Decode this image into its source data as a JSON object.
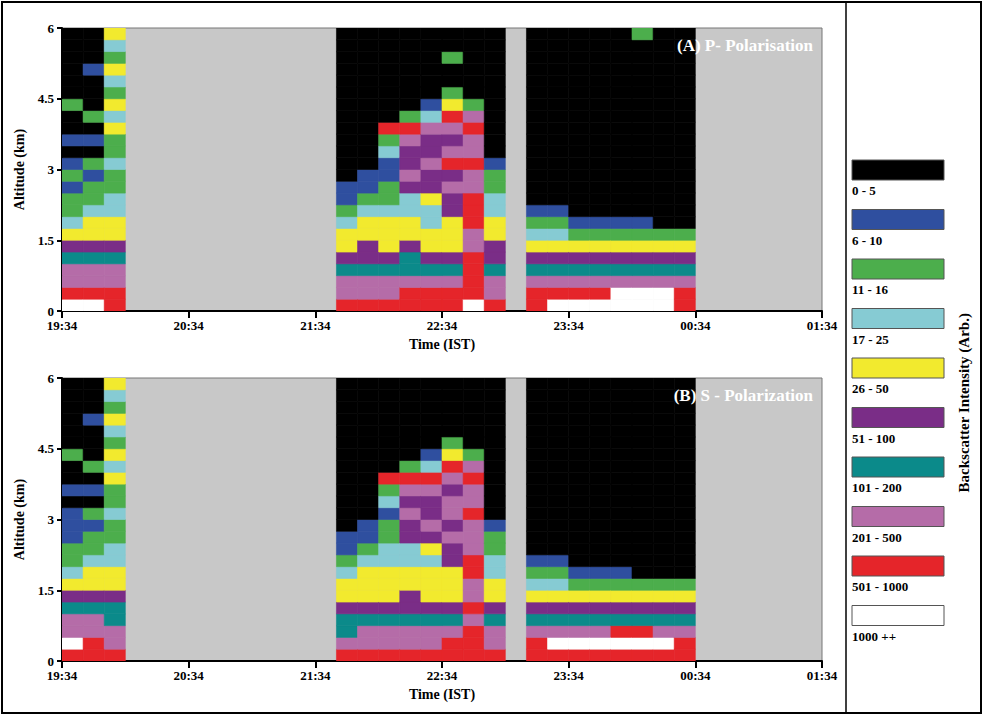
{
  "chart_data": [
    {
      "type": "heatmap",
      "title": "(A) P- Polarisation",
      "xlabel": "Time (IST)",
      "ylabel": "Altitude (km)",
      "xlim": [
        1174,
        1534
      ],
      "xticks": [
        {
          "value": 1174,
          "label": "19:34"
        },
        {
          "value": 1234,
          "label": "20:34"
        },
        {
          "value": 1294,
          "label": "21:34"
        },
        {
          "value": 1354,
          "label": "22:34"
        },
        {
          "value": 1414,
          "label": "23:34"
        },
        {
          "value": 1474,
          "label": "00:34"
        },
        {
          "value": 1534,
          "label": "01:34"
        }
      ],
      "ylim": [
        0,
        6
      ],
      "yticks": [
        0,
        1.5,
        3,
        4.5,
        6
      ],
      "grid": false,
      "time_edges": [
        1174,
        1184,
        1194,
        1204,
        1214,
        1224,
        1234,
        1244,
        1254,
        1264,
        1274,
        1284,
        1294,
        1304,
        1314,
        1324,
        1334,
        1344,
        1354,
        1364,
        1374,
        1384,
        1394,
        1404,
        1414,
        1424,
        1434,
        1444,
        1454,
        1464,
        1474
      ],
      "altitude_edges": [
        0,
        0.25,
        0.5,
        0.75,
        1,
        1.25,
        1.5,
        1.75,
        2,
        2.25,
        2.5,
        2.75,
        3,
        3.25,
        3.5,
        3.75,
        4,
        4.25,
        4.5,
        4.75,
        5,
        5.25,
        5.5,
        5.75,
        6
      ],
      "cells": [
        [
          1200,
          750,
          350,
          350,
          150,
          75,
          38,
          20,
          13,
          13,
          8,
          13,
          8,
          2,
          8,
          2,
          2,
          13,
          2,
          2,
          2,
          2,
          2,
          2
        ],
        [
          1200,
          750,
          350,
          350,
          150,
          75,
          38,
          38,
          20,
          13,
          13,
          8,
          13,
          2,
          8,
          2,
          13,
          2,
          2,
          2,
          8,
          2,
          2,
          2
        ],
        [
          750,
          750,
          350,
          350,
          150,
          75,
          38,
          38,
          20,
          20,
          13,
          13,
          20,
          13,
          13,
          38,
          20,
          38,
          13,
          20,
          38,
          13,
          20,
          38
        ],
        null,
        null,
        null,
        null,
        null,
        null,
        null,
        null,
        null,
        null,
        [
          750,
          350,
          350,
          150,
          75,
          38,
          38,
          20,
          13,
          8,
          8,
          2,
          2,
          2,
          2,
          2,
          2,
          2,
          2,
          2,
          2,
          2,
          2,
          2
        ],
        [
          750,
          350,
          350,
          150,
          75,
          75,
          38,
          38,
          20,
          13,
          8,
          8,
          2,
          2,
          2,
          2,
          2,
          2,
          2,
          2,
          2,
          2,
          2,
          2
        ],
        [
          750,
          350,
          350,
          150,
          75,
          38,
          38,
          38,
          20,
          13,
          13,
          8,
          8,
          20,
          13,
          750,
          2,
          2,
          2,
          2,
          2,
          2,
          2,
          2
        ],
        [
          750,
          750,
          350,
          150,
          150,
          75,
          38,
          38,
          20,
          20,
          75,
          350,
          75,
          75,
          350,
          750,
          13,
          2,
          2,
          2,
          2,
          2,
          2,
          2
        ],
        [
          750,
          750,
          350,
          150,
          75,
          38,
          38,
          20,
          20,
          38,
          75,
          75,
          350,
          75,
          75,
          350,
          20,
          8,
          2,
          2,
          2,
          2,
          2,
          2
        ],
        [
          750,
          750,
          350,
          150,
          75,
          38,
          38,
          38,
          75,
          75,
          350,
          75,
          750,
          350,
          75,
          350,
          750,
          38,
          13,
          2,
          2,
          13,
          2,
          2
        ],
        [
          1200,
          750,
          750,
          750,
          750,
          350,
          350,
          750,
          750,
          750,
          350,
          350,
          750,
          350,
          350,
          750,
          350,
          13,
          2,
          2,
          2,
          2,
          2,
          2
        ],
        [
          750,
          350,
          350,
          150,
          75,
          75,
          38,
          38,
          20,
          20,
          13,
          13,
          8,
          2,
          2,
          2,
          2,
          2,
          2,
          2,
          2,
          2,
          2,
          2
        ],
        null,
        [
          750,
          750,
          350,
          150,
          75,
          38,
          20,
          13,
          8,
          2,
          2,
          2,
          2,
          2,
          2,
          2,
          2,
          2,
          2,
          2,
          2,
          2,
          2,
          2
        ],
        [
          1200,
          750,
          350,
          150,
          75,
          38,
          20,
          13,
          8,
          2,
          2,
          2,
          2,
          2,
          2,
          2,
          2,
          2,
          2,
          2,
          2,
          2,
          2,
          2
        ],
        [
          1200,
          750,
          350,
          150,
          75,
          38,
          13,
          8,
          2,
          2,
          2,
          2,
          2,
          2,
          2,
          2,
          2,
          2,
          2,
          2,
          2,
          2,
          2,
          2
        ],
        [
          1200,
          750,
          350,
          150,
          75,
          38,
          13,
          8,
          2,
          2,
          2,
          2,
          2,
          2,
          2,
          2,
          2,
          2,
          2,
          2,
          2,
          2,
          2,
          2
        ],
        [
          1200,
          1200,
          350,
          150,
          75,
          38,
          13,
          8,
          2,
          2,
          2,
          2,
          2,
          2,
          2,
          2,
          2,
          2,
          2,
          2,
          2,
          2,
          2,
          2
        ],
        [
          1200,
          1200,
          350,
          150,
          75,
          38,
          13,
          8,
          2,
          2,
          2,
          2,
          2,
          2,
          2,
          2,
          2,
          2,
          2,
          2,
          2,
          2,
          2,
          13
        ],
        [
          1200,
          1200,
          350,
          150,
          75,
          38,
          13,
          2,
          2,
          2,
          2,
          2,
          2,
          2,
          2,
          2,
          2,
          2,
          2,
          2,
          2,
          2,
          2,
          2
        ],
        [
          750,
          750,
          350,
          150,
          75,
          38,
          13,
          2,
          2,
          2,
          2,
          2,
          2,
          2,
          2,
          2,
          2,
          2,
          2,
          2,
          2,
          2,
          2,
          2
        ]
      ]
    },
    {
      "type": "heatmap",
      "title": "(B) S - Polarization",
      "xlabel": "Time (IST)",
      "ylabel": "Altitude (km)",
      "xlim": [
        1174,
        1534
      ],
      "xticks": [
        {
          "value": 1174,
          "label": "19:34"
        },
        {
          "value": 1234,
          "label": "20:34"
        },
        {
          "value": 1294,
          "label": "21:34"
        },
        {
          "value": 1354,
          "label": "22:34"
        },
        {
          "value": 1414,
          "label": "23:34"
        },
        {
          "value": 1474,
          "label": "00:34"
        },
        {
          "value": 1534,
          "label": "01:34"
        }
      ],
      "ylim": [
        0,
        6
      ],
      "yticks": [
        0,
        1.5,
        3,
        4.5,
        6
      ],
      "grid": false,
      "time_edges": [
        1174,
        1184,
        1194,
        1204,
        1214,
        1224,
        1234,
        1244,
        1254,
        1264,
        1274,
        1284,
        1294,
        1304,
        1314,
        1324,
        1334,
        1344,
        1354,
        1364,
        1374,
        1384,
        1394,
        1404,
        1414,
        1424,
        1434,
        1444,
        1454,
        1464,
        1474
      ],
      "altitude_edges": [
        0,
        0.25,
        0.5,
        0.75,
        1,
        1.25,
        1.5,
        1.75,
        2,
        2.25,
        2.5,
        2.75,
        3,
        3.25,
        3.5,
        3.75,
        4,
        4.25,
        4.5,
        4.75,
        5,
        5.25,
        5.5,
        5.75,
        6
      ],
      "cells": [
        [
          750,
          1200,
          350,
          350,
          150,
          75,
          38,
          20,
          13,
          13,
          8,
          8,
          8,
          2,
          8,
          2,
          2,
          13,
          2,
          2,
          2,
          2,
          2,
          2
        ],
        [
          750,
          750,
          350,
          350,
          150,
          75,
          38,
          38,
          20,
          13,
          13,
          8,
          13,
          2,
          8,
          2,
          13,
          2,
          2,
          2,
          8,
          2,
          2,
          2
        ],
        [
          750,
          350,
          350,
          150,
          150,
          75,
          38,
          38,
          20,
          20,
          13,
          13,
          20,
          13,
          13,
          38,
          20,
          38,
          13,
          20,
          38,
          13,
          20,
          38
        ],
        null,
        null,
        null,
        null,
        null,
        null,
        null,
        null,
        null,
        null,
        [
          750,
          350,
          150,
          150,
          75,
          38,
          38,
          20,
          13,
          8,
          8,
          2,
          2,
          2,
          2,
          2,
          2,
          2,
          2,
          2,
          2,
          2,
          2,
          2
        ],
        [
          750,
          350,
          350,
          150,
          75,
          38,
          38,
          38,
          20,
          13,
          8,
          8,
          2,
          2,
          2,
          2,
          2,
          2,
          2,
          2,
          2,
          2,
          2,
          2
        ],
        [
          750,
          350,
          350,
          150,
          75,
          38,
          38,
          38,
          20,
          20,
          13,
          13,
          8,
          20,
          13,
          750,
          2,
          2,
          2,
          2,
          2,
          2,
          2,
          2
        ],
        [
          750,
          350,
          350,
          150,
          75,
          75,
          38,
          38,
          20,
          20,
          75,
          75,
          350,
          75,
          350,
          750,
          13,
          2,
          2,
          2,
          2,
          2,
          2,
          2
        ],
        [
          750,
          350,
          350,
          150,
          75,
          38,
          38,
          38,
          20,
          38,
          75,
          350,
          75,
          75,
          350,
          750,
          20,
          8,
          2,
          2,
          2,
          2,
          2,
          2
        ],
        [
          750,
          750,
          350,
          150,
          75,
          38,
          38,
          38,
          75,
          75,
          350,
          75,
          350,
          350,
          75,
          350,
          750,
          38,
          13,
          2,
          2,
          2,
          2,
          2
        ],
        [
          750,
          750,
          750,
          350,
          750,
          350,
          350,
          750,
          750,
          350,
          350,
          350,
          750,
          350,
          350,
          750,
          350,
          13,
          2,
          2,
          2,
          2,
          2,
          2
        ],
        [
          750,
          350,
          350,
          150,
          75,
          38,
          38,
          20,
          20,
          13,
          13,
          8,
          2,
          2,
          2,
          2,
          2,
          2,
          2,
          2,
          2,
          2,
          2,
          2
        ],
        null,
        [
          750,
          750,
          350,
          150,
          75,
          38,
          20,
          13,
          8,
          2,
          2,
          2,
          2,
          2,
          2,
          2,
          2,
          2,
          2,
          2,
          2,
          2,
          2,
          2
        ],
        [
          750,
          1200,
          350,
          150,
          75,
          38,
          20,
          13,
          8,
          2,
          2,
          2,
          2,
          2,
          2,
          2,
          2,
          2,
          2,
          2,
          2,
          2,
          2,
          2
        ],
        [
          750,
          1200,
          350,
          150,
          75,
          38,
          13,
          8,
          2,
          2,
          2,
          2,
          2,
          2,
          2,
          2,
          2,
          2,
          2,
          2,
          2,
          2,
          2,
          2
        ],
        [
          750,
          1200,
          350,
          150,
          75,
          38,
          13,
          8,
          2,
          2,
          2,
          2,
          2,
          2,
          2,
          2,
          2,
          2,
          2,
          2,
          2,
          2,
          2,
          2
        ],
        [
          750,
          1200,
          750,
          150,
          75,
          38,
          13,
          8,
          2,
          2,
          2,
          2,
          2,
          2,
          2,
          2,
          2,
          2,
          2,
          2,
          2,
          2,
          2,
          2
        ],
        [
          750,
          1200,
          750,
          150,
          75,
          38,
          13,
          2,
          2,
          2,
          2,
          2,
          2,
          2,
          2,
          2,
          2,
          2,
          2,
          2,
          2,
          2,
          2,
          2
        ],
        [
          750,
          1200,
          350,
          150,
          75,
          38,
          13,
          2,
          2,
          2,
          2,
          2,
          2,
          2,
          2,
          2,
          2,
          2,
          2,
          2,
          2,
          2,
          2,
          2
        ],
        [
          750,
          750,
          350,
          150,
          75,
          38,
          13,
          2,
          2,
          2,
          2,
          2,
          2,
          2,
          2,
          2,
          2,
          2,
          2,
          2,
          2,
          2,
          2,
          2
        ]
      ]
    }
  ],
  "color_bar": {
    "title": "Backscatter Intensity (Arb.)",
    "classes": [
      {
        "label": "0 - 5",
        "min": 0,
        "max": 5,
        "color": "#000000"
      },
      {
        "label": "6 - 10",
        "min": 6,
        "max": 10,
        "color": "#2f4f9f"
      },
      {
        "label": "11 - 16",
        "min": 11,
        "max": 16,
        "color": "#4cae4c"
      },
      {
        "label": "17 - 25",
        "min": 17,
        "max": 25,
        "color": "#86cbd3"
      },
      {
        "label": "26 - 50",
        "min": 26,
        "max": 50,
        "color": "#f2ea2e"
      },
      {
        "label": "51 - 100",
        "min": 51,
        "max": 100,
        "color": "#7a2d87"
      },
      {
        "label": "101 - 200",
        "min": 101,
        "max": 200,
        "color": "#0b8a8a"
      },
      {
        "label": "201 - 500",
        "min": 201,
        "max": 500,
        "color": "#b56ca8"
      },
      {
        "label": "501 - 1000",
        "min": 501,
        "max": 1000,
        "color": "#e5252a"
      },
      {
        "label": "1000 ++",
        "min": 1000,
        "color": "#ffffff"
      }
    ]
  }
}
